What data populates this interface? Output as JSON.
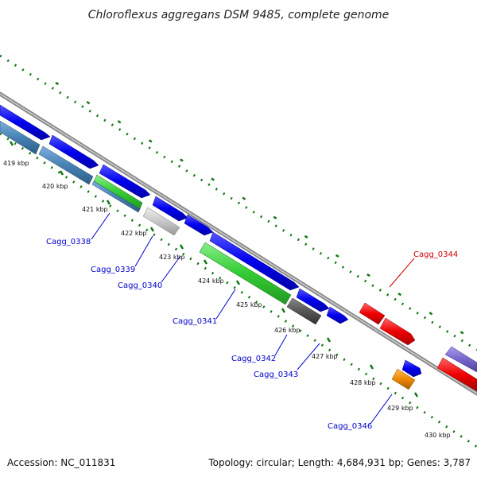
{
  "title": "Chloroflexus aggregans DSM 9485, complete genome",
  "footer": {
    "accession": "Accession: NC_011831",
    "topology": "Topology: circular; Length: 4,684,931 bp; Genes: 3,787"
  },
  "ticks": [
    "419 kbp",
    "420 kbp",
    "421 kbp",
    "422 kbp",
    "423 kbp",
    "424 kbp",
    "425 kbp",
    "426 kbp",
    "427 kbp",
    "428 kbp",
    "429 kbp",
    "430 kbp"
  ],
  "gene_labels": [
    {
      "text": "Cagg_0338",
      "color": "#0000cc"
    },
    {
      "text": "Cagg_0339",
      "color": "#0000cc"
    },
    {
      "text": "Cagg_0340",
      "color": "#0000cc"
    },
    {
      "text": "Cagg_0341",
      "color": "#0000cc"
    },
    {
      "text": "Cagg_0342",
      "color": "#0000cc"
    },
    {
      "text": "Cagg_0343",
      "color": "#0000cc"
    },
    {
      "text": "Cagg_0344",
      "color": "#cc0000"
    },
    {
      "text": "Cagg_0346",
      "color": "#0000cc"
    }
  ],
  "colors": {
    "forward_cds": "#0000ee",
    "rna_gene": "#33cc33",
    "pseudogene": "#c8c8c8",
    "dark_feature": "#555555",
    "reverse_cds": "#ee0000",
    "orange_feature": "#ee8800",
    "purple_feature": "#7766cc",
    "steel_feature": "#4682b4",
    "backbone": "#888888",
    "gc_dots": "#117711"
  }
}
